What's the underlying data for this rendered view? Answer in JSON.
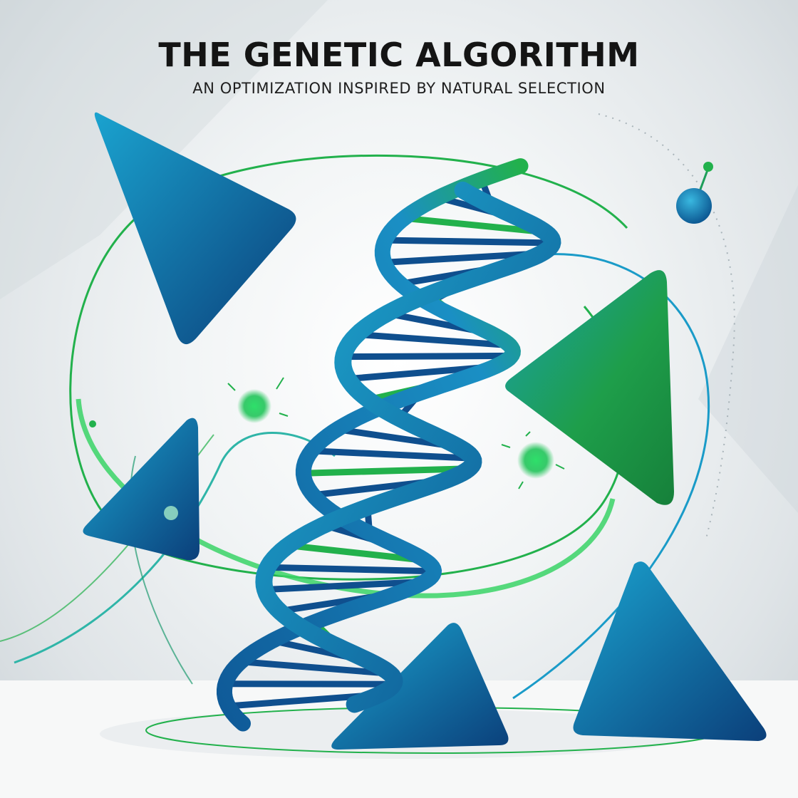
{
  "header": {
    "title": "THE GENETIC ALGORITHM",
    "subtitle": "AN OPTIMIZATION INSPIRED BY NATURAL SELECTION"
  },
  "palette": {
    "blue_dark": "#0d4f8c",
    "blue_light": "#1ba6cf",
    "green": "#22b14c",
    "background": "#eef1f3"
  },
  "illustration": {
    "subject": "dna-double-helix",
    "decorations": [
      "triangle",
      "orbit-ring",
      "green-particle",
      "molecule"
    ]
  }
}
